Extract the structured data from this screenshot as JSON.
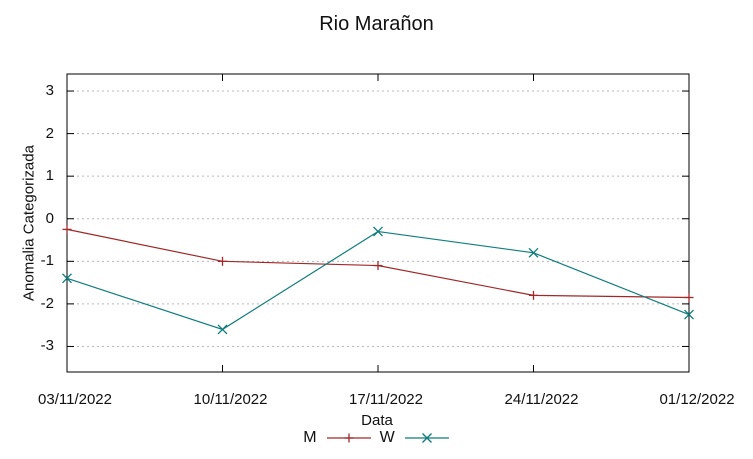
{
  "chart_data": {
    "type": "line",
    "title": "Rio Marañon",
    "xlabel": "Data",
    "ylabel": "Anomalia Categorizada",
    "categories": [
      "03/11/2022",
      "10/11/2022",
      "17/11/2022",
      "24/11/2022",
      "01/12/2022"
    ],
    "yticks": [
      3,
      2,
      1,
      0,
      -1,
      -2,
      -3
    ],
    "ylim": [
      -3.6,
      3.4
    ],
    "grid": "horizontal-dotted",
    "legend_position": "bottom-center",
    "series": [
      {
        "name": "M",
        "marker": "plus",
        "color": "#a02828",
        "values": [
          -0.25,
          -1.0,
          -1.1,
          -1.8,
          -1.85
        ]
      },
      {
        "name": "W",
        "marker": "cross",
        "color": "#0f7c7c",
        "values": [
          -1.4,
          -2.6,
          -0.3,
          -0.8,
          -2.25
        ]
      }
    ],
    "colors": {
      "axis": "#000000",
      "grid": "#b8b8b8",
      "text": "#111111",
      "background": "#ffffff"
    }
  }
}
